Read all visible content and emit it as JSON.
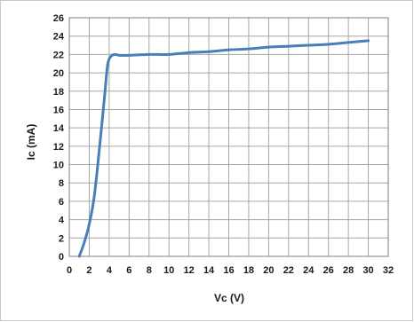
{
  "chart_data": {
    "type": "line",
    "title": "",
    "xlabel": "Vc (V)",
    "ylabel": "Ic (mA)",
    "xlim": [
      0,
      32
    ],
    "ylim": [
      0,
      26
    ],
    "x_ticks": [
      "0",
      "2",
      "4",
      "6",
      "8",
      "10",
      "12",
      "14",
      "16",
      "18",
      "20",
      "22",
      "24",
      "26",
      "28",
      "30",
      "32"
    ],
    "y_ticks": [
      "0",
      "2",
      "4",
      "6",
      "8",
      "10",
      "12",
      "14",
      "16",
      "18",
      "20",
      "22",
      "24",
      "26"
    ],
    "grid": true,
    "legend": "none",
    "colors": {
      "line": "#4a7ebb",
      "grid": "#a6a6a6",
      "border": "#7f7f7f"
    },
    "series": [
      {
        "x": [
          1.0,
          1.5,
          2.0,
          2.5,
          3.0,
          3.5,
          3.8,
          4.0,
          4.3,
          4.6,
          5.0,
          5.5,
          6,
          8,
          10,
          12,
          14,
          16,
          18,
          20,
          22,
          24,
          26,
          28,
          30
        ],
        "y": [
          0.0,
          1.5,
          3.5,
          6.5,
          11.5,
          17.0,
          20.5,
          21.5,
          21.9,
          22.0,
          21.9,
          21.9,
          21.9,
          22.0,
          22.0,
          22.2,
          22.3,
          22.5,
          22.6,
          22.8,
          22.9,
          23.0,
          23.1,
          23.3,
          23.5
        ]
      }
    ]
  }
}
